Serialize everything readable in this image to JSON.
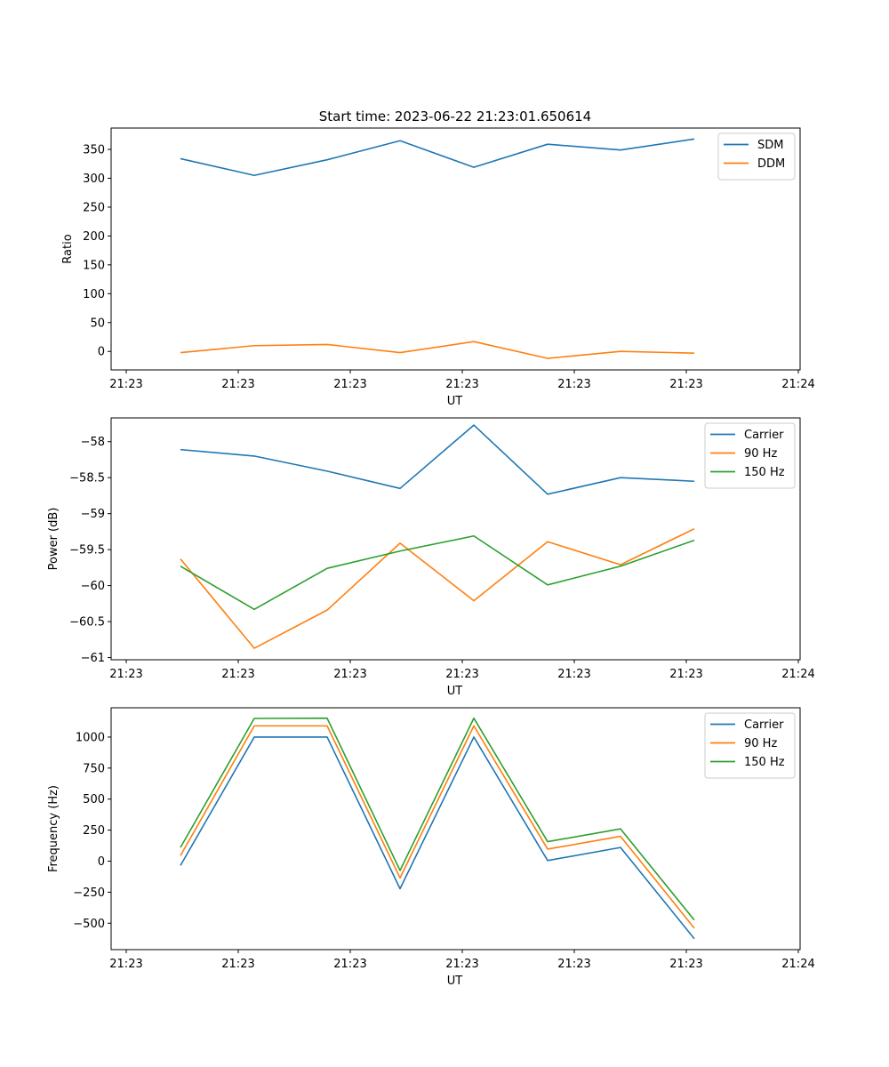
{
  "figure_title": "Start time: 2023-06-22 21:23:01.650614",
  "chart_data": [
    {
      "type": "line",
      "xlabel": "UT",
      "ylabel": "Ratio",
      "x_tick_labels": [
        "21:23",
        "21:23",
        "21:23",
        "21:23",
        "21:23",
        "21:23",
        "21:23",
        "21:24"
      ],
      "ylim": [
        -32,
        387
      ],
      "y_ticks": [
        0,
        50,
        100,
        150,
        200,
        250,
        300,
        350
      ],
      "grid": false,
      "legend_position": "top-right",
      "series": [
        {
          "name": "SDM",
          "color": "#1f77b4",
          "values": [
            334,
            305,
            332,
            365,
            319,
            359,
            349,
            368
          ]
        },
        {
          "name": "DDM",
          "color": "#ff7f0e",
          "values": [
            -2,
            10,
            12,
            -2,
            17,
            -12,
            0,
            -3
          ]
        }
      ]
    },
    {
      "type": "line",
      "xlabel": "UT",
      "ylabel": "Power (dB)",
      "x_tick_labels": [
        "21:23",
        "21:23",
        "21:23",
        "21:23",
        "21:23",
        "21:23",
        "21:23",
        "21:24"
      ],
      "ylim": [
        -61.03,
        -57.67
      ],
      "y_ticks": [
        -58.0,
        -58.5,
        -59.0,
        -59.5,
        -60.0,
        -60.5,
        -61.0
      ],
      "grid": false,
      "legend_position": "top-right",
      "series": [
        {
          "name": "Carrier",
          "color": "#1f77b4",
          "values": [
            -58.11,
            -58.2,
            -58.41,
            -58.65,
            -57.77,
            -58.73,
            -58.5,
            -58.55
          ]
        },
        {
          "name": "90 Hz",
          "color": "#ff7f0e",
          "values": [
            -59.63,
            -60.87,
            -60.34,
            -59.41,
            -60.21,
            -59.39,
            -59.71,
            -59.21
          ]
        },
        {
          "name": "150 Hz",
          "color": "#2ca02c",
          "values": [
            -59.73,
            -60.33,
            -59.76,
            -59.52,
            -59.31,
            -59.99,
            -59.73,
            -59.37
          ]
        }
      ]
    },
    {
      "type": "line",
      "xlabel": "UT",
      "ylabel": "Frequency (Hz)",
      "x_tick_labels": [
        "21:23",
        "21:23",
        "21:23",
        "21:23",
        "21:23",
        "21:23",
        "21:23",
        "21:24"
      ],
      "ylim": [
        -713,
        1236
      ],
      "y_ticks": [
        -500,
        -250,
        0,
        250,
        500,
        750,
        1000
      ],
      "grid": false,
      "legend_position": "top-right",
      "series": [
        {
          "name": "Carrier",
          "color": "#1f77b4",
          "values": [
            -35,
            1000,
            1000,
            -222,
            1000,
            5,
            110,
            -625
          ]
        },
        {
          "name": "90 Hz",
          "color": "#ff7f0e",
          "values": [
            45,
            1090,
            1090,
            -135,
            1090,
            97,
            200,
            -540
          ]
        },
        {
          "name": "150 Hz",
          "color": "#2ca02c",
          "values": [
            110,
            1150,
            1152,
            -75,
            1152,
            157,
            260,
            -475
          ]
        }
      ]
    }
  ]
}
